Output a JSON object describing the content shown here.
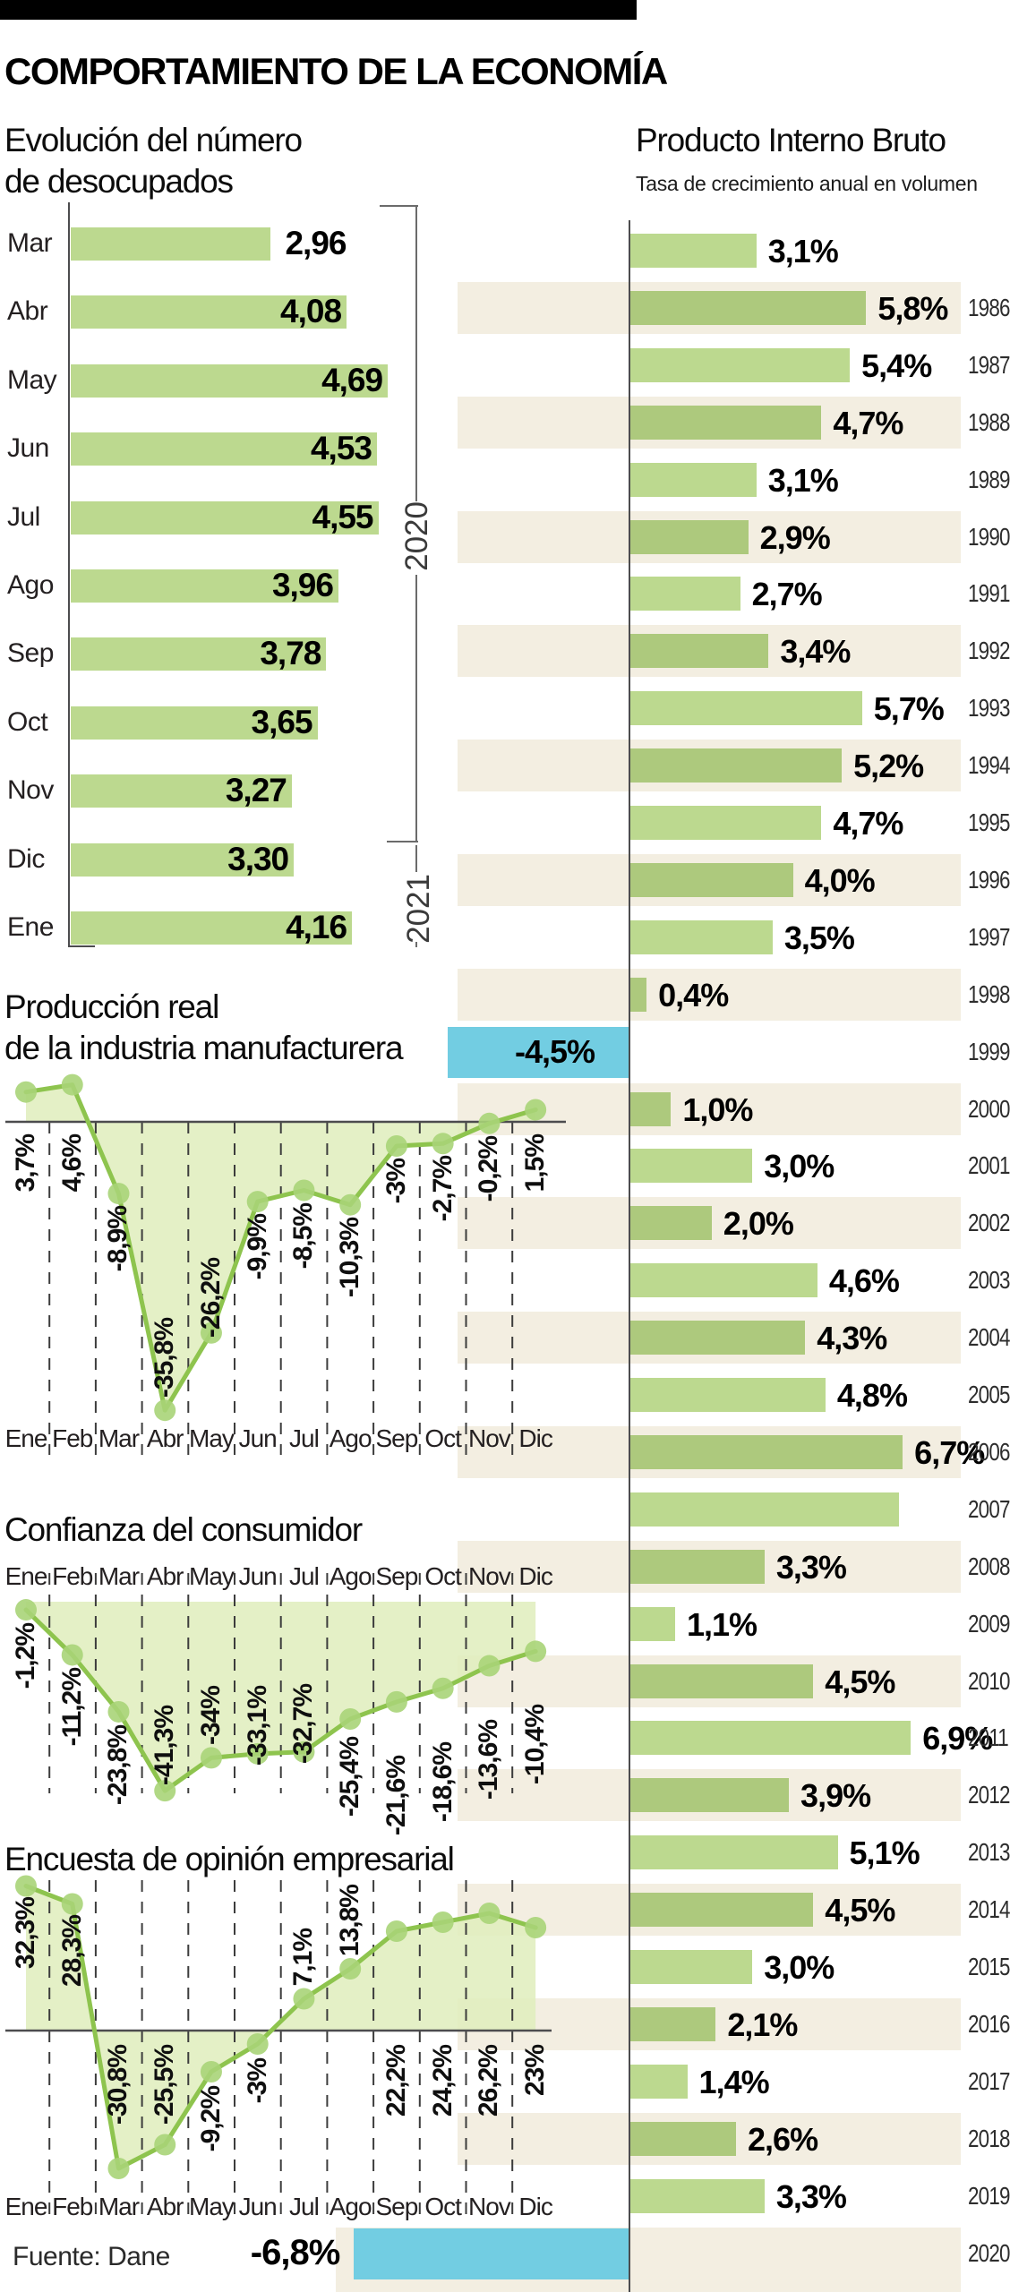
{
  "page_title": "COMPORTAMIENTO DE LA ECONOMÍA",
  "source_note": "Fuente: Dane",
  "colors": {
    "bar_green_light": "#bcd98f",
    "bar_green_dark": "#adc97d",
    "stripe_beige": "#f3eee1",
    "highlight_blue": "#72cde2",
    "line_green": "#8ec44e",
    "marker_green": "#a9d478",
    "area_green": "#dfedbc",
    "axis_gray": "#4c4c4e",
    "grid_gray": "#3c3c3c",
    "text_dark": "#111111",
    "year_gray": "#2d2d2d"
  },
  "chart_data": [
    {
      "id": "desocupados",
      "type": "bar",
      "title_lines": [
        "Evolución del número",
        "de desocupados"
      ],
      "categories": [
        "Mar",
        "Abr",
        "May",
        "Jun",
        "Jul",
        "Ago",
        "Sep",
        "Oct",
        "Nov",
        "Dic",
        "Ene"
      ],
      "values": [
        2.96,
        4.08,
        4.69,
        4.53,
        4.55,
        3.96,
        3.78,
        3.65,
        3.27,
        3.3,
        4.16
      ],
      "value_labels": [
        "2,96",
        "4,08",
        "4,69",
        "4,53",
        "4,55",
        "3,96",
        "3,78",
        "3,65",
        "3,27",
        "3,30",
        "4,16"
      ],
      "year_groups": [
        {
          "label": "2020",
          "categories": [
            "Mar",
            "Abr",
            "May",
            "Jun",
            "Jul",
            "Ago",
            "Sep",
            "Oct",
            "Nov",
            "Dic"
          ]
        },
        {
          "label": "2021",
          "categories": [
            "Ene"
          ]
        }
      ]
    },
    {
      "id": "pib",
      "type": "bar",
      "title": "Producto Interno Bruto",
      "subtitle": "Tasa de crecimiento anual en volumen",
      "rows": [
        {
          "year": "",
          "label": "3,1%",
          "value": 3.1,
          "stripe": false,
          "highlight": false
        },
        {
          "year": "1986",
          "label": "5,8%",
          "value": 5.8,
          "stripe": true,
          "highlight": false
        },
        {
          "year": "1987",
          "label": "5,4%",
          "value": 5.4,
          "stripe": false,
          "highlight": false
        },
        {
          "year": "1988",
          "label": "4,7%",
          "value": 4.7,
          "stripe": true,
          "highlight": false
        },
        {
          "year": "1989",
          "label": "3,1%",
          "value": 3.1,
          "stripe": false,
          "highlight": false
        },
        {
          "year": "1990",
          "label": "2,9%",
          "value": 2.9,
          "stripe": true,
          "highlight": false
        },
        {
          "year": "1991",
          "label": "2,7%",
          "value": 2.7,
          "stripe": false,
          "highlight": false
        },
        {
          "year": "1992",
          "label": "3,4%",
          "value": 3.4,
          "stripe": true,
          "highlight": false
        },
        {
          "year": "1993",
          "label": "5,7%",
          "value": 5.7,
          "stripe": false,
          "highlight": false
        },
        {
          "year": "1994",
          "label": "5,2%",
          "value": 5.2,
          "stripe": true,
          "highlight": false
        },
        {
          "year": "1995",
          "label": "4,7%",
          "value": 4.7,
          "stripe": false,
          "highlight": false
        },
        {
          "year": "1996",
          "label": "4,0%",
          "value": 4.0,
          "stripe": true,
          "highlight": false
        },
        {
          "year": "1997",
          "label": "3,5%",
          "value": 3.5,
          "stripe": false,
          "highlight": false
        },
        {
          "year": "1998",
          "label": "0,4%",
          "value": 0.4,
          "stripe": true,
          "highlight": false
        },
        {
          "year": "1999",
          "label": "-4,5%",
          "value": -4.5,
          "stripe": false,
          "highlight": true
        },
        {
          "year": "2000",
          "label": "1,0%",
          "value": 1.0,
          "stripe": true,
          "highlight": false
        },
        {
          "year": "2001",
          "label": "3,0%",
          "value": 3.0,
          "stripe": false,
          "highlight": false
        },
        {
          "year": "2002",
          "label": "2,0%",
          "value": 2.0,
          "stripe": true,
          "highlight": false
        },
        {
          "year": "2003",
          "label": "4,6%",
          "value": 4.6,
          "stripe": false,
          "highlight": false
        },
        {
          "year": "2004",
          "label": "4,3%",
          "value": 4.3,
          "stripe": true,
          "highlight": false
        },
        {
          "year": "2005",
          "label": "4,8%",
          "value": 4.8,
          "stripe": false,
          "highlight": false
        },
        {
          "year": "2006",
          "label": "6,7%",
          "value": 6.7,
          "stripe": true,
          "highlight": false
        },
        {
          "year": "2007",
          "label": "",
          "value": 6.6,
          "stripe": false,
          "highlight": false
        },
        {
          "year": "2008",
          "label": "3,3%",
          "value": 3.3,
          "stripe": true,
          "highlight": false
        },
        {
          "year": "2009",
          "label": "1,1%",
          "value": 1.1,
          "stripe": false,
          "highlight": false
        },
        {
          "year": "2010",
          "label": "4,5%",
          "value": 4.5,
          "stripe": true,
          "highlight": false
        },
        {
          "year": "2011",
          "label": "6,9%",
          "value": 6.9,
          "stripe": false,
          "highlight": false
        },
        {
          "year": "2012",
          "label": "3,9%",
          "value": 3.9,
          "stripe": true,
          "highlight": false
        },
        {
          "year": "2013",
          "label": "5,1%",
          "value": 5.1,
          "stripe": false,
          "highlight": false
        },
        {
          "year": "2014",
          "label": "4,5%",
          "value": 4.5,
          "stripe": true,
          "highlight": false
        },
        {
          "year": "2015",
          "label": "3,0%",
          "value": 3.0,
          "stripe": false,
          "highlight": false
        },
        {
          "year": "2016",
          "label": "2,1%",
          "value": 2.1,
          "stripe": true,
          "highlight": false
        },
        {
          "year": "2017",
          "label": "1,4%",
          "value": 1.4,
          "stripe": false,
          "highlight": false
        },
        {
          "year": "2018",
          "label": "2,6%",
          "value": 2.6,
          "stripe": true,
          "highlight": false
        },
        {
          "year": "2019",
          "label": "3,3%",
          "value": 3.3,
          "stripe": false,
          "highlight": false
        },
        {
          "year": "2020",
          "label": "-6,8%",
          "value": -6.8,
          "stripe": true,
          "highlight": true
        }
      ]
    },
    {
      "id": "manufacturera",
      "type": "line",
      "title_lines": [
        "Producción real",
        "de la industria manufacturera"
      ],
      "months": [
        "Ene",
        "Feb",
        "Mar",
        "Abr",
        "May",
        "Jun",
        "Jul",
        "Ago",
        "Sep",
        "Oct",
        "Nov",
        "Dic"
      ],
      "labels": [
        "3,7%",
        "4,6%",
        "-8,9%",
        "-35,8%",
        "-26,2%",
        "-9,9%",
        "-8,5%",
        "-10,3%",
        "-3%",
        "-2,7%",
        "-0,2%",
        "1,5%"
      ],
      "values": [
        3.7,
        4.6,
        -8.9,
        -35.8,
        -26.2,
        -9.9,
        -8.5,
        -10.3,
        -3,
        -2.7,
        -0.2,
        1.5
      ]
    },
    {
      "id": "confianza",
      "type": "line",
      "title": "Confianza del consumidor",
      "months": [
        "Ene",
        "Feb",
        "Mar",
        "Abr",
        "May",
        "Jun",
        "Jul",
        "Ago",
        "Sep",
        "Oct",
        "Nov",
        "Dic"
      ],
      "labels": [
        "-1,2%",
        "-11,2%",
        "-23,8%",
        "-41,3%",
        "-34%",
        "-33,1%",
        "-32,7%",
        "-25,4%",
        "-21,6%",
        "-18,6%",
        "-13,6%",
        "-10,4%"
      ],
      "values": [
        -1.2,
        -11.2,
        -23.8,
        -41.3,
        -34,
        -33.1,
        -32.7,
        -25.4,
        -21.6,
        -18.6,
        -13.6,
        -10.4
      ]
    },
    {
      "id": "empresarial",
      "type": "line",
      "title": "Encuesta de opinión empresarial",
      "months": [
        "Ene",
        "Feb",
        "Mar",
        "Abr",
        "May",
        "Jun",
        "Jul",
        "Ago",
        "Sep",
        "Oct",
        "Nov",
        "Dic"
      ],
      "labels": [
        "32,3%",
        "28,3%",
        "-30,8%",
        "-25,5%",
        "-9,2%",
        "-3%",
        "7,1%",
        "13,8%",
        "22,2%",
        "24,2%",
        "26,2%",
        "23%"
      ],
      "values": [
        32.3,
        28.3,
        -30.8,
        -25.5,
        -9.2,
        -3,
        7.1,
        13.8,
        22.2,
        24.2,
        26.2,
        23
      ]
    }
  ]
}
